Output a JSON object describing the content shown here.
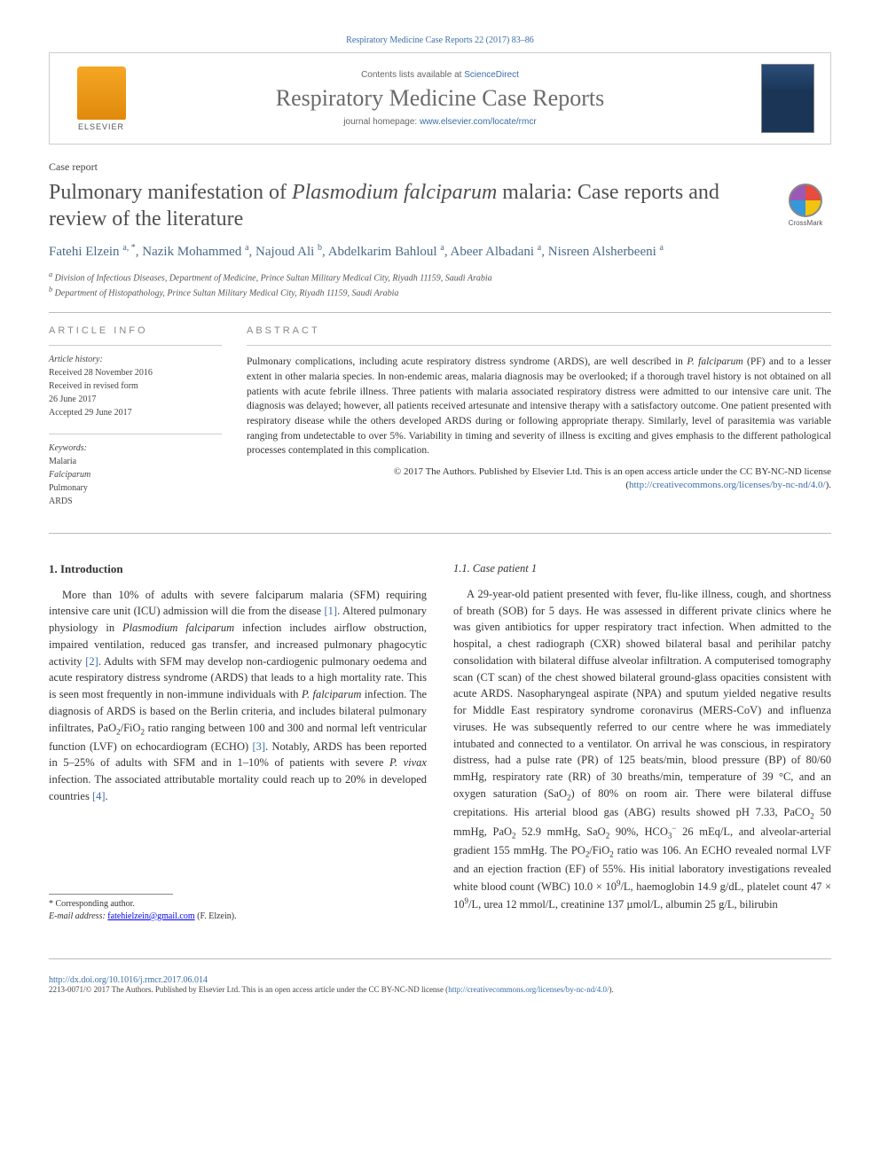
{
  "citation": "Respiratory Medicine Case Reports 22 (2017) 83–86",
  "header": {
    "contents_prefix": "Contents lists available at ",
    "contents_link": "ScienceDirect",
    "journal_title": "Respiratory Medicine Case Reports",
    "homepage_prefix": "journal homepage: ",
    "homepage_url": "www.elsevier.com/locate/rmcr",
    "publisher_label": "ELSEVIER"
  },
  "article_type": "Case report",
  "title_html": "Pulmonary manifestation of <em>Plasmodium falciparum</em> malaria: Case reports and review of the literature",
  "crossmark_label": "CrossMark",
  "authors_html": "Fatehi Elzein <sup>a, *</sup>, Nazik Mohammed <sup>a</sup>, Najoud Ali <sup>b</sup>, Abdelkarim Bahloul <sup>a</sup>, Abeer Albadani <sup>a</sup>, Nisreen Alsherbeeni <sup>a</sup>",
  "affiliations": [
    "a Division of Infectious Diseases, Department of Medicine, Prince Sultan Military Medical City, Riyadh 11159, Saudi Arabia",
    "b Department of Histopathology, Prince Sultan Military Medical City, Riyadh 11159, Saudi Arabia"
  ],
  "info": {
    "heading": "ARTICLE INFO",
    "history_label": "Article history:",
    "history_lines": [
      "Received 28 November 2016",
      "Received in revised form",
      "26 June 2017",
      "Accepted 29 June 2017"
    ],
    "keywords_label": "Keywords:",
    "keywords": [
      "Malaria",
      "Falciparum",
      "Pulmonary",
      "ARDS"
    ]
  },
  "abstract": {
    "heading": "ABSTRACT",
    "text_html": "Pulmonary complications, including acute respiratory distress syndrome (ARDS), are well described in <em>P. falciparum</em> (PF) and to a lesser extent in other malaria species. In non-endemic areas, malaria diagnosis may be overlooked; if a thorough travel history is not obtained on all patients with acute febrile illness. Three patients with malaria associated respiratory distress were admitted to our intensive care unit. The diagnosis was delayed; however, all patients received artesunate and intensive therapy with a satisfactory outcome. One patient presented with respiratory disease while the others developed ARDS during or following appropriate therapy. Similarly, level of parasitemia was variable ranging from undetectable to over 5%. Variability in timing and severity of illness is exciting and gives emphasis to the different pathological processes contemplated in this complication.",
    "copyright_html": "© 2017 The Authors. Published by Elsevier Ltd. This is an open access article under the CC BY-NC-ND license (<a href=\"#\" data-name=\"cc-license-link\" data-interactable=\"true\">http://creativecommons.org/licenses/by-nc-nd/4.0/</a>)."
  },
  "body": {
    "left": {
      "heading": "1. Introduction",
      "para_html": "More than 10% of adults with severe falciparum malaria (SFM) requiring intensive care unit (ICU) admission will die from the disease <a class=\"ref-link\" data-name=\"ref-link-1\" data-interactable=\"true\">[1]</a>. Altered pulmonary physiology in <em>Plasmodium falciparum</em> infection includes airflow obstruction, impaired ventilation, reduced gas transfer, and increased pulmonary phagocytic activity <a class=\"ref-link\" data-name=\"ref-link-2\" data-interactable=\"true\">[2]</a>. Adults with SFM may develop non-cardiogenic pulmonary oedema and acute respiratory distress syndrome (ARDS) that leads to a high mortality rate. This is seen most frequently in non-immune individuals with <em>P. falciparum</em> infection. The diagnosis of ARDS is based on the Berlin criteria, and includes bilateral pulmonary infiltrates, PaO<sub>2</sub>/FiO<sub>2</sub> ratio ranging between 100 and 300 and normal left ventricular function (LVF) on echocardiogram (ECHO) <a class=\"ref-link\" data-name=\"ref-link-3\" data-interactable=\"true\">[3]</a>. Notably, ARDS has been reported in 5–25% of adults with SFM and in 1–10% of patients with severe <em>P. vivax</em> infection. The associated attributable mortality could reach up to 20% in developed countries <a class=\"ref-link\" data-name=\"ref-link-4\" data-interactable=\"true\">[4]</a>."
    },
    "right": {
      "subheading": "1.1. Case patient 1",
      "para_html": "A 29-year-old patient presented with fever, flu-like illness, cough, and shortness of breath (SOB) for 5 days. He was assessed in different private clinics where he was given antibiotics for upper respiratory tract infection. When admitted to the hospital, a chest radiograph (CXR) showed bilateral basal and perihilar patchy consolidation with bilateral diffuse alveolar infiltration. A computerised tomography scan (CT scan) of the chest showed bilateral ground-glass opacities consistent with acute ARDS. Nasopharyngeal aspirate (NPA) and sputum yielded negative results for Middle East respiratory syndrome coronavirus (MERS-CoV) and influenza viruses. He was subsequently referred to our centre where he was immediately intubated and connected to a ventilator. On arrival he was conscious, in respiratory distress, had a pulse rate (PR) of 125 beats/min, blood pressure (BP) of 80/60 mmHg, respiratory rate (RR) of 30 breaths/min, temperature of 39 °C, and an oxygen saturation (SaO<sub>2</sub>) of 80% on room air. There were bilateral diffuse crepitations. His arterial blood gas (ABG) results showed pH 7.33, PaCO<sub>2</sub> 50 mmHg, PaO<sub>2</sub> 52.9 mmHg, SaO<sub>2</sub> 90%, HCO<sub>3</sub><sup>−</sup> 26 mEq/L, and alveolar-arterial gradient 155 mmHg. The PO<sub>2</sub>/FiO<sub>2</sub> ratio was 106. An ECHO revealed normal LVF and an ejection fraction (EF) of 55%. His initial laboratory investigations revealed white blood count (WBC) 10.0 × 10<sup>9</sup>/L, haemoglobin 14.9 g/dL, platelet count 47 × 10<sup>9</sup>/L, urea 12 mmol/L, creatinine 137 µmol/L, albumin 25 g/L, bilirubin"
    }
  },
  "footnotes": {
    "corr_label": "* Corresponding author.",
    "email_label": "E-mail address:",
    "email": "fatehielzein@gmail.com",
    "email_suffix": "(F. Elzein)."
  },
  "footer": {
    "doi": "http://dx.doi.org/10.1016/j.rmcr.2017.06.014",
    "license_html": "2213-0071/© 2017 The Authors. Published by Elsevier Ltd. This is an open access article under the CC BY-NC-ND license (<a href=\"#\" data-name=\"footer-cc-link\" data-interactable=\"true\">http://creativecommons.org/licenses/by-nc-nd/4.0/</a>)."
  },
  "colors": {
    "link": "#3b6ea8",
    "title_grey": "#505050",
    "author_blue": "#4a6b8a",
    "border": "#cccccc",
    "text": "#333333"
  }
}
